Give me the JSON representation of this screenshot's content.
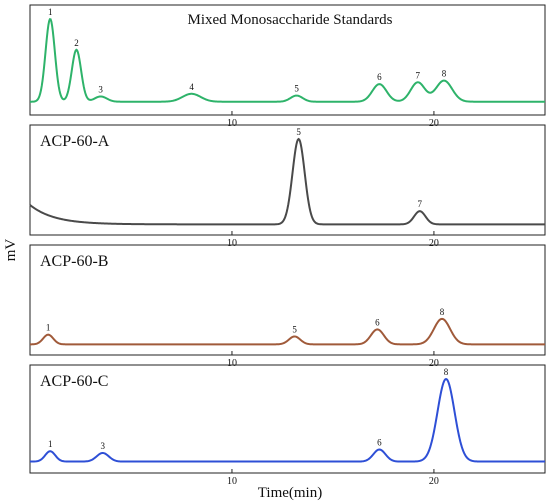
{
  "figure": {
    "ylabel": "mV",
    "xlabel": "Time(min)"
  },
  "chart_data": [
    {
      "type": "line",
      "panel_title": "Mixed Monosaccharide Standards",
      "color": "#2eb36a",
      "xlim": [
        0,
        25.5
      ],
      "x_ticks": [
        10,
        20
      ],
      "baseline": 6,
      "peaks": [
        {
          "label": "1",
          "x": 1.0,
          "height": 100,
          "width": 0.23
        },
        {
          "label": "2",
          "x": 2.3,
          "height": 65,
          "width": 0.23
        },
        {
          "label": "3",
          "x": 3.5,
          "height": 12,
          "width": 0.3
        },
        {
          "label": "4",
          "x": 8.0,
          "height": 15,
          "width": 0.45
        },
        {
          "label": "5",
          "x": 13.2,
          "height": 13,
          "width": 0.3
        },
        {
          "label": "6",
          "x": 17.3,
          "height": 26,
          "width": 0.35
        },
        {
          "label": "7",
          "x": 19.2,
          "height": 28,
          "width": 0.35
        },
        {
          "label": "8",
          "x": 20.5,
          "height": 30,
          "width": 0.4
        }
      ]
    },
    {
      "type": "line",
      "panel_title": "ACP-60-A",
      "color": "#4a4a4a",
      "xlim": [
        0,
        25.5
      ],
      "x_ticks": [
        10,
        20
      ],
      "baseline": 3,
      "initial_offset": {
        "height": 22,
        "decay": 1.2
      },
      "peaks": [
        {
          "label": "5",
          "x": 13.3,
          "height": 100,
          "width": 0.3
        },
        {
          "label": "7",
          "x": 19.3,
          "height": 18,
          "width": 0.28
        }
      ]
    },
    {
      "type": "line",
      "panel_title": "ACP-60-B",
      "color": "#a05a3a",
      "xlim": [
        0,
        25.5
      ],
      "x_ticks": [
        10,
        20
      ],
      "baseline": 3,
      "peaks": [
        {
          "label": "1",
          "x": 0.9,
          "height": 14,
          "width": 0.25
        },
        {
          "label": "5",
          "x": 13.1,
          "height": 12,
          "width": 0.28
        },
        {
          "label": "6",
          "x": 17.2,
          "height": 20,
          "width": 0.32
        },
        {
          "label": "8",
          "x": 20.4,
          "height": 32,
          "width": 0.4
        }
      ]
    },
    {
      "type": "line",
      "panel_title": "ACP-60-C",
      "color": "#2e4fd6",
      "xlim": [
        0,
        25.5
      ],
      "x_ticks": [
        10,
        20
      ],
      "baseline": 4,
      "peaks": [
        {
          "label": "1",
          "x": 1.0,
          "height": 16,
          "width": 0.25
        },
        {
          "label": "3",
          "x": 3.6,
          "height": 14,
          "width": 0.3
        },
        {
          "label": "6",
          "x": 17.3,
          "height": 18,
          "width": 0.3
        },
        {
          "label": "8",
          "x": 20.6,
          "height": 100,
          "width": 0.42
        }
      ]
    }
  ]
}
